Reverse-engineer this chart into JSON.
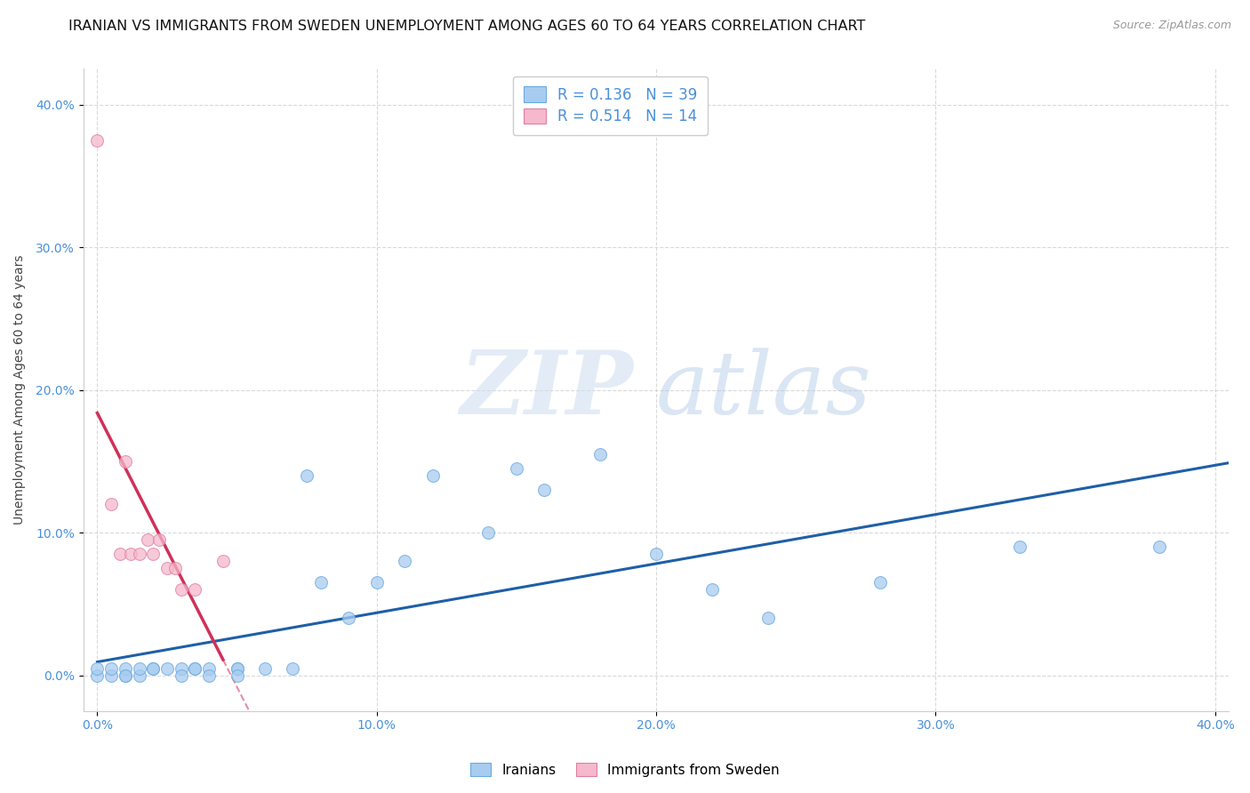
{
  "title": "IRANIAN VS IMMIGRANTS FROM SWEDEN UNEMPLOYMENT AMONG AGES 60 TO 64 YEARS CORRELATION CHART",
  "source": "Source: ZipAtlas.com",
  "ylabel": "Unemployment Among Ages 60 to 64 years",
  "xlim": [
    -0.005,
    0.405
  ],
  "ylim": [
    -0.025,
    0.425
  ],
  "x_ticks": [
    0.0,
    0.1,
    0.2,
    0.3,
    0.4
  ],
  "y_ticks": [
    0.0,
    0.1,
    0.2,
    0.3,
    0.4
  ],
  "x_tick_labels": [
    "0.0%",
    "10.0%",
    "20.0%",
    "30.0%",
    "40.0%"
  ],
  "y_tick_labels": [
    "0.0%",
    "10.0%",
    "20.0%",
    "30.0%",
    "40.0%"
  ],
  "iranian_color": "#a8ccf0",
  "iranian_edge": "#6aaae0",
  "swedish_color": "#f5b8cc",
  "swedish_edge": "#e080a0",
  "trendline_iranian_color": "#1e5fa8",
  "trendline_swedish_color": "#d0305a",
  "R_iranian": 0.136,
  "N_iranian": 39,
  "R_swedish": 0.514,
  "N_swedish": 14,
  "watermark_zip": "ZIP",
  "watermark_atlas": "atlas",
  "iranians_x": [
    0.0,
    0.0,
    0.005,
    0.005,
    0.01,
    0.01,
    0.01,
    0.015,
    0.015,
    0.02,
    0.02,
    0.025,
    0.03,
    0.03,
    0.035,
    0.035,
    0.04,
    0.04,
    0.05,
    0.05,
    0.05,
    0.06,
    0.07,
    0.075,
    0.08,
    0.09,
    0.1,
    0.11,
    0.12,
    0.14,
    0.15,
    0.16,
    0.18,
    0.2,
    0.22,
    0.24,
    0.28,
    0.33,
    0.38
  ],
  "iranians_y": [
    0.0,
    0.005,
    0.0,
    0.005,
    0.0,
    0.005,
    0.0,
    0.0,
    0.005,
    0.005,
    0.005,
    0.005,
    0.005,
    0.0,
    0.005,
    0.005,
    0.005,
    0.0,
    0.005,
    0.005,
    0.0,
    0.005,
    0.005,
    0.14,
    0.065,
    0.04,
    0.065,
    0.08,
    0.14,
    0.1,
    0.145,
    0.13,
    0.155,
    0.085,
    0.06,
    0.04,
    0.065,
    0.09,
    0.09
  ],
  "swedish_x": [
    0.0,
    0.005,
    0.008,
    0.01,
    0.012,
    0.015,
    0.018,
    0.02,
    0.022,
    0.025,
    0.028,
    0.03,
    0.035,
    0.045
  ],
  "swedish_y": [
    0.375,
    0.12,
    0.085,
    0.15,
    0.085,
    0.085,
    0.095,
    0.085,
    0.095,
    0.075,
    0.075,
    0.06,
    0.06,
    0.08
  ],
  "background_color": "#ffffff",
  "grid_color": "#d0d0d0",
  "title_fontsize": 11.5,
  "axis_label_fontsize": 10,
  "tick_fontsize": 10,
  "legend_fontsize": 12,
  "marker_size": 100
}
